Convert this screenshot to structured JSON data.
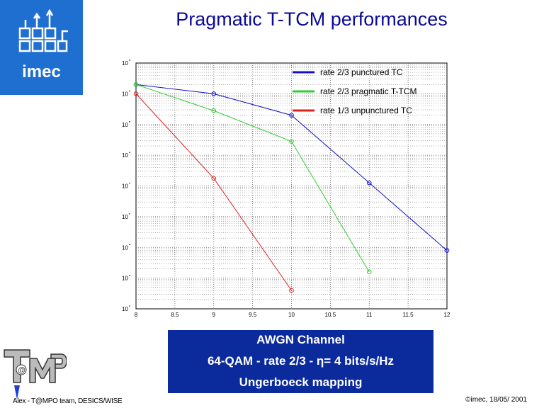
{
  "title": "Pragmatic T-TCM performances",
  "logo": {
    "text": "imec"
  },
  "info_box": {
    "lines": [
      "AWGN Channel",
      "64-QAM - rate 2/3 - η= 4 bits/s/Hz",
      "Ungerboeck mapping"
    ],
    "background": "#0b2a9c"
  },
  "footer": {
    "left": "Alex - T@MPO team, DESICS/WISE",
    "right": "©imec, 18/05/ 2001"
  },
  "chart_data": {
    "type": "line",
    "xlim": [
      8,
      12
    ],
    "x_ticks": [
      "8",
      "8.5",
      "9",
      "9.5",
      "10",
      "10.5",
      "11",
      "11.5",
      "12"
    ],
    "y_scale": "log",
    "ylim_exponent": [
      -9,
      -1
    ],
    "y_tick_labels": [
      "10",
      "10",
      "10",
      "10",
      "10",
      "10",
      "10",
      "10",
      "10"
    ],
    "grid": true,
    "legend_position": "top-right",
    "series": [
      {
        "name": "rate 2/3 punctured TC",
        "color": "#1010c8",
        "x": [
          8,
          9,
          10,
          11,
          12
        ],
        "log10_y": [
          -1.7,
          -2.0,
          -2.7,
          -4.9,
          -7.1
        ]
      },
      {
        "name": "rate 2/3 pragmatic T-TCM",
        "color": "#33cc33",
        "x": [
          8,
          9,
          10,
          11
        ],
        "log10_y": [
          -1.7,
          -2.55,
          -3.55,
          -7.8
        ]
      },
      {
        "name": "rate 1/3 unpunctured TC",
        "color": "#dd2222",
        "x": [
          8,
          9,
          10
        ],
        "log10_y": [
          -2.0,
          -4.75,
          -8.4
        ]
      }
    ]
  }
}
